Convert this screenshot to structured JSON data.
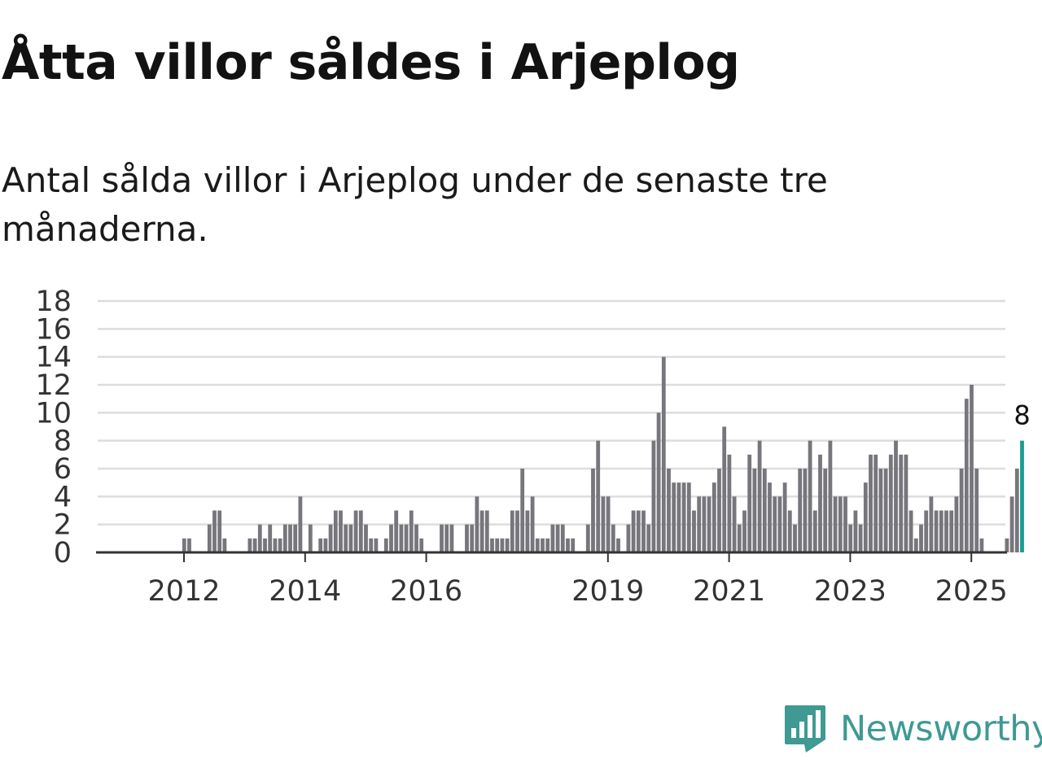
{
  "title": "Åtta villor såldes i Arjeplog",
  "subtitle": "Antal sålda villor i Arjeplog under de senaste tre månaderna.",
  "brand": {
    "name": "Newsworthy",
    "icon": "newsworthy-logo-icon"
  },
  "colors": {
    "bar": "#77767c",
    "highlight": "#1a9c93",
    "grid": "#dddddd",
    "axis": "#333333",
    "brand": "#3e9a93"
  },
  "chart_data": {
    "type": "bar",
    "title": "Åtta villor såldes i Arjeplog",
    "xlabel": "",
    "ylabel": "",
    "ylim": [
      0,
      18
    ],
    "yticks": [
      "0",
      "2",
      "4",
      "6",
      "8",
      "10",
      "12",
      "14",
      "16",
      "18"
    ],
    "xticks": [
      {
        "label": "2012",
        "index": 9
      },
      {
        "label": "2014",
        "index": 33
      },
      {
        "label": "2016",
        "index": 57
      },
      {
        "label": "2019",
        "index": 93
      },
      {
        "label": "2021",
        "index": 117
      },
      {
        "label": "2023",
        "index": 141
      },
      {
        "label": "2025",
        "index": 165
      }
    ],
    "highlight_label": "8",
    "series": [
      {
        "name": "Antal sålda villor",
        "values": [
          0,
          0,
          0,
          0,
          0,
          0,
          0,
          0,
          0,
          1,
          1,
          0,
          0,
          0,
          2,
          3,
          3,
          1,
          0,
          0,
          0,
          0,
          1,
          1,
          2,
          1,
          2,
          1,
          1,
          2,
          2,
          2,
          4,
          0,
          2,
          0,
          1,
          1,
          2,
          3,
          3,
          2,
          2,
          3,
          3,
          2,
          1,
          1,
          0,
          1,
          2,
          3,
          2,
          2,
          3,
          2,
          1,
          0,
          0,
          0,
          2,
          2,
          2,
          0,
          0,
          2,
          2,
          4,
          3,
          3,
          1,
          1,
          1,
          1,
          3,
          3,
          6,
          3,
          4,
          1,
          1,
          1,
          2,
          2,
          2,
          1,
          1,
          0,
          0,
          2,
          6,
          8,
          4,
          4,
          2,
          1,
          0,
          2,
          3,
          3,
          3,
          2,
          8,
          10,
          14,
          6,
          5,
          5,
          5,
          5,
          3,
          4,
          4,
          4,
          5,
          6,
          9,
          7,
          4,
          2,
          3,
          7,
          6,
          8,
          6,
          5,
          4,
          4,
          5,
          3,
          2,
          6,
          6,
          8,
          3,
          7,
          6,
          8,
          4,
          4,
          4,
          2,
          3,
          2,
          5,
          7,
          7,
          6,
          6,
          7,
          8,
          7,
          7,
          3,
          1,
          2,
          3,
          4,
          3,
          3,
          3,
          3,
          4,
          6,
          11,
          12,
          6,
          1,
          0,
          0,
          0,
          0,
          1,
          4,
          6,
          8
        ]
      }
    ]
  }
}
